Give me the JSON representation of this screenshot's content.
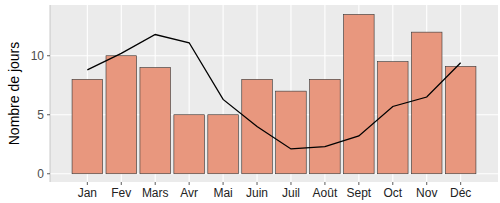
{
  "chart_data": {
    "type": "bar",
    "y_label": "Nombre de jours",
    "categories": [
      "Jan",
      "Fev",
      "Mars",
      "Avr",
      "Mai",
      "Juin",
      "Juil",
      "Août",
      "Sept",
      "Oct",
      "Nov",
      "Déc"
    ],
    "series": [
      {
        "type": "bar",
        "color": "#e8977e",
        "values": [
          8,
          10,
          9,
          5,
          5,
          8,
          7,
          8,
          13.5,
          9.5,
          12,
          9.1
        ]
      },
      {
        "type": "line",
        "color": "#000000",
        "values": [
          8.8,
          10.2,
          11.8,
          11.1,
          6.3,
          4.0,
          2.1,
          2.3,
          3.2,
          5.7,
          6.5,
          9.4
        ]
      }
    ],
    "ylim": [
      -0.7,
      14.3
    ],
    "yticks": [
      0,
      5,
      10
    ],
    "grid": true
  }
}
